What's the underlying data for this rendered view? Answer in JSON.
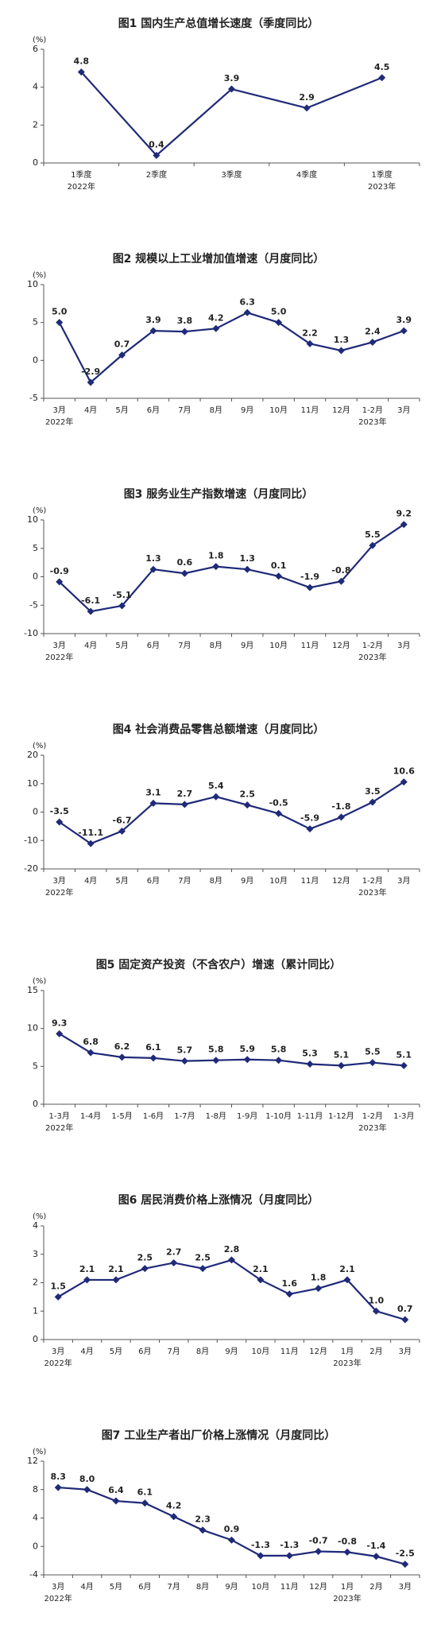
{
  "chart_data": [
    {
      "type": "line",
      "title": "图1  国内生产总值增长速度（季度同比）",
      "unit_label": "(%)",
      "categories": [
        "1季度",
        "2季度",
        "3季度",
        "4季度",
        "1季度"
      ],
      "year_labels": [
        "2022年",
        null,
        null,
        null,
        "2023年"
      ],
      "values": [
        4.8,
        0.4,
        3.9,
        2.9,
        4.5
      ],
      "value_labels": [
        "4.8",
        "0.4",
        "3.9",
        "2.9",
        "4.5"
      ],
      "color": "#1f2a78",
      "ylim": [
        0,
        6
      ],
      "yticks": [
        0,
        2,
        4,
        6
      ]
    },
    {
      "type": "line",
      "title": "图2  规模以上工业增加值增速（月度同比）",
      "unit_label": "(%)",
      "categories": [
        "3月",
        "4月",
        "5月",
        "6月",
        "7月",
        "8月",
        "9月",
        "10月",
        "11月",
        "12月",
        "1-2月",
        "3月"
      ],
      "year_labels": [
        "2022年",
        null,
        null,
        null,
        null,
        null,
        null,
        null,
        null,
        null,
        "2023年",
        null
      ],
      "values": [
        5.0,
        -2.9,
        0.7,
        3.9,
        3.8,
        4.2,
        6.3,
        5.0,
        2.2,
        1.3,
        2.4,
        3.9
      ],
      "value_labels": [
        "5.0",
        "-2.9",
        "0.7",
        "3.9",
        "3.8",
        "4.2",
        "6.3",
        "5.0",
        "2.2",
        "1.3",
        "2.4",
        "3.9"
      ],
      "color": "#1f2a78",
      "ylim": [
        -5,
        10
      ],
      "yticks": [
        -5,
        0,
        5,
        10
      ]
    },
    {
      "type": "line",
      "title": "图3  服务业生产指数增速（月度同比）",
      "unit_label": "(%)",
      "categories": [
        "3月",
        "4月",
        "5月",
        "6月",
        "7月",
        "8月",
        "9月",
        "10月",
        "11月",
        "12月",
        "1-2月",
        "3月"
      ],
      "year_labels": [
        "2022年",
        null,
        null,
        null,
        null,
        null,
        null,
        null,
        null,
        null,
        "2023年",
        null
      ],
      "values": [
        -0.9,
        -6.1,
        -5.1,
        1.3,
        0.6,
        1.8,
        1.3,
        0.1,
        -1.9,
        -0.8,
        5.5,
        9.2
      ],
      "value_labels": [
        "-0.9",
        "-6.1",
        "-5.1",
        "1.3",
        "0.6",
        "1.8",
        "1.3",
        "0.1",
        "-1.9",
        "-0.8",
        "5.5",
        "9.2"
      ],
      "color": "#1f2a78",
      "ylim": [
        -10,
        10
      ],
      "yticks": [
        -10,
        -5,
        0,
        5,
        10
      ]
    },
    {
      "type": "line",
      "title": "图4  社会消费品零售总额增速（月度同比）",
      "unit_label": "(%)",
      "categories": [
        "3月",
        "4月",
        "5月",
        "6月",
        "7月",
        "8月",
        "9月",
        "10月",
        "11月",
        "12月",
        "1-2月",
        "3月"
      ],
      "year_labels": [
        "2022年",
        null,
        null,
        null,
        null,
        null,
        null,
        null,
        null,
        null,
        "2023年",
        null
      ],
      "values": [
        -3.5,
        -11.1,
        -6.7,
        3.1,
        2.7,
        5.4,
        2.5,
        -0.5,
        -5.9,
        -1.8,
        3.5,
        10.6
      ],
      "value_labels": [
        "-3.5",
        "-11.1",
        "-6.7",
        "3.1",
        "2.7",
        "5.4",
        "2.5",
        "-0.5",
        "-5.9",
        "-1.8",
        "3.5",
        "10.6"
      ],
      "color": "#1f2a78",
      "ylim": [
        -20,
        20
      ],
      "yticks": [
        -20,
        -10,
        0,
        10,
        20
      ]
    },
    {
      "type": "line",
      "title": "图5  固定资产投资（不含农户）增速（累计同比）",
      "unit_label": "(%)",
      "categories": [
        "1-3月",
        "1-4月",
        "1-5月",
        "1-6月",
        "1-7月",
        "1-8月",
        "1-9月",
        "1-10月",
        "1-11月",
        "1-12月",
        "1-2月",
        "1-3月"
      ],
      "year_labels": [
        "2022年",
        null,
        null,
        null,
        null,
        null,
        null,
        null,
        null,
        null,
        "2023年",
        null
      ],
      "values": [
        9.3,
        6.8,
        6.2,
        6.1,
        5.7,
        5.8,
        5.9,
        5.8,
        5.3,
        5.1,
        5.5,
        5.1
      ],
      "value_labels": [
        "9.3",
        "6.8",
        "6.2",
        "6.1",
        "5.7",
        "5.8",
        "5.9",
        "5.8",
        "5.3",
        "5.1",
        "5.5",
        "5.1"
      ],
      "color": "#1f2a78",
      "ylim": [
        0,
        15
      ],
      "yticks": [
        0,
        5,
        10,
        15
      ]
    },
    {
      "type": "line",
      "title": "图6  居民消费价格上涨情况（月度同比）",
      "unit_label": "(%)",
      "categories": [
        "3月",
        "4月",
        "5月",
        "6月",
        "7月",
        "8月",
        "9月",
        "10月",
        "11月",
        "12月",
        "1月",
        "2月",
        "3月"
      ],
      "year_labels": [
        "2022年",
        null,
        null,
        null,
        null,
        null,
        null,
        null,
        null,
        null,
        "2023年",
        null,
        null
      ],
      "values": [
        1.5,
        2.1,
        2.1,
        2.5,
        2.7,
        2.5,
        2.8,
        2.1,
        1.6,
        1.8,
        2.1,
        1.0,
        0.7
      ],
      "value_labels": [
        "1.5",
        "2.1",
        "2.1",
        "2.5",
        "2.7",
        "2.5",
        "2.8",
        "2.1",
        "1.6",
        "1.8",
        "2.1",
        "1.0",
        "0.7"
      ],
      "color": "#1f2a78",
      "ylim": [
        0,
        4
      ],
      "yticks": [
        0,
        1,
        2,
        3,
        4
      ]
    },
    {
      "type": "line",
      "title": "图7  工业生产者出厂价格上涨情况（月度同比）",
      "unit_label": "(%)",
      "categories": [
        "3月",
        "4月",
        "5月",
        "6月",
        "7月",
        "8月",
        "9月",
        "10月",
        "11月",
        "12月",
        "1月",
        "2月",
        "3月"
      ],
      "year_labels": [
        "2022年",
        null,
        null,
        null,
        null,
        null,
        null,
        null,
        null,
        null,
        "2023年",
        null,
        null
      ],
      "values": [
        8.3,
        8.0,
        6.4,
        6.1,
        4.2,
        2.3,
        0.9,
        -1.3,
        -1.3,
        -0.7,
        -0.8,
        -1.4,
        -2.5
      ],
      "value_labels": [
        "8.3",
        "8.0",
        "6.4",
        "6.1",
        "4.2",
        "2.3",
        "0.9",
        "-1.3",
        "-1.3",
        "-0.7",
        "-0.8",
        "-1.4",
        "-2.5"
      ],
      "color": "#1f2a78",
      "ylim": [
        -4,
        12
      ],
      "yticks": [
        -4,
        0,
        4,
        8,
        12
      ]
    }
  ]
}
